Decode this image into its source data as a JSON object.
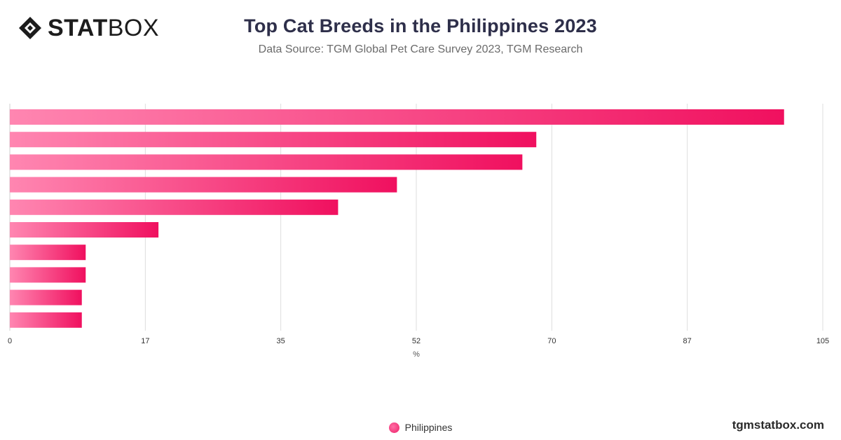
{
  "header": {
    "logo_bold": "STAT",
    "logo_light": "BOX",
    "title": "Top Cat Breeds in the Philippines 2023",
    "subtitle": "Data Source: TGM Global Pet Care Survey 2023, TGM Research"
  },
  "footer": {
    "brand": "tgmstatbox.com"
  },
  "legend": {
    "label": "Philippines"
  },
  "colors": {
    "bar_start": "#ff86b1",
    "bar_end": "#f0105f"
  },
  "chart_data": {
    "type": "bar",
    "orientation": "horizontal",
    "categories": [
      "",
      "",
      "",
      "",
      "",
      "",
      "",
      "",
      "",
      ""
    ],
    "series": [
      {
        "name": "Philippines",
        "values": [
          100,
          68,
          66.2,
          50,
          42.4,
          19.2,
          9.8,
          9.8,
          9.3,
          9.3
        ]
      }
    ],
    "xlabel": "%",
    "ylabel": "",
    "xlim": [
      0,
      105
    ],
    "xticks": [
      "0",
      "17",
      "35",
      "52",
      "70",
      "87",
      "105"
    ],
    "grid": true,
    "legend_position": "bottom-center"
  }
}
